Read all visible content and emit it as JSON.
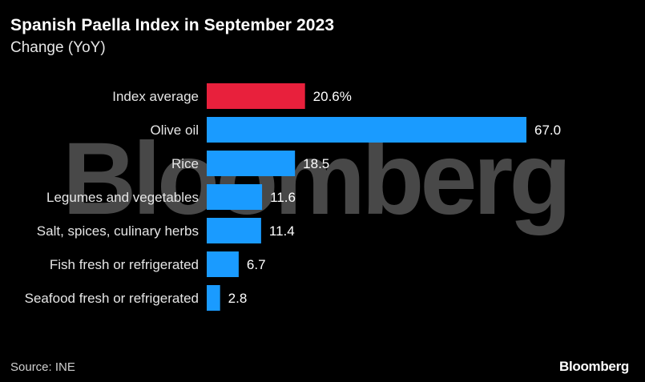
{
  "header": {
    "title": "Spanish Paella Index in September 2023",
    "subtitle": "Change (YoY)"
  },
  "watermark": {
    "text": "Bloomberg"
  },
  "footer": {
    "source": "Source: INE",
    "brand": "Bloomberg"
  },
  "colors": {
    "highlight": "#e8203c",
    "bar": "#1a9bff",
    "background": "#000000",
    "text": "#ffffff"
  },
  "chart_data": {
    "type": "bar",
    "orientation": "horizontal",
    "title": "Spanish Paella Index in September 2023",
    "subtitle": "Change (YoY)",
    "categories": [
      "Index average",
      "Olive oil",
      "Rice",
      "Legumes and vegetables",
      "Salt, spices, culinary herbs",
      "Fish fresh or refrigerated",
      "Seafood fresh or refrigerated"
    ],
    "values": [
      20.6,
      67.0,
      18.5,
      11.6,
      11.4,
      6.7,
      2.8
    ],
    "value_labels": [
      "20.6%",
      "67.0",
      "18.5",
      "11.6",
      "11.4",
      "6.7",
      "2.8"
    ],
    "highlight_index": 0,
    "xlim": [
      0,
      67.0
    ],
    "grid": false,
    "legend": "none"
  }
}
